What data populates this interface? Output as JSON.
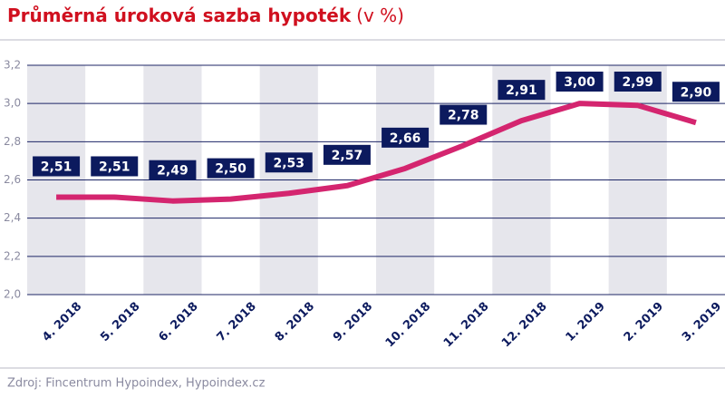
{
  "chart_data": {
    "type": "line",
    "title": "Průměrná úroková sazba hypoték",
    "subtitle": "(v %)",
    "source": "Zdroj: Fincentrum Hypoindex, Hypoindex.cz",
    "categories": [
      "4. 2018",
      "5. 2018",
      "6. 2018",
      "7. 2018",
      "8. 2018",
      "9. 2018",
      "10. 2018",
      "11. 2018",
      "12. 2018",
      "1. 2019",
      "2. 2019",
      "3. 2019"
    ],
    "values": [
      2.51,
      2.51,
      2.49,
      2.5,
      2.53,
      2.57,
      2.66,
      2.78,
      2.91,
      3.0,
      2.99,
      2.9
    ],
    "value_labels": [
      "2,51",
      "2,51",
      "2,49",
      "2,50",
      "2,53",
      "2,57",
      "2,66",
      "2,78",
      "2,91",
      "3,00",
      "2,99",
      "2,90"
    ],
    "color": "#d4256f",
    "ylim": [
      2.0,
      3.2
    ],
    "yticks": [
      {
        "value": 2.0,
        "label": "2,0"
      },
      {
        "value": 2.2,
        "label": "2,2"
      },
      {
        "value": 2.4,
        "label": "2,4"
      },
      {
        "value": 2.6,
        "label": "2,6"
      },
      {
        "value": 2.8,
        "label": "2,8"
      },
      {
        "value": 3.0,
        "label": "3,0"
      },
      {
        "value": 3.2,
        "label": "3,2"
      }
    ],
    "grid": true
  }
}
